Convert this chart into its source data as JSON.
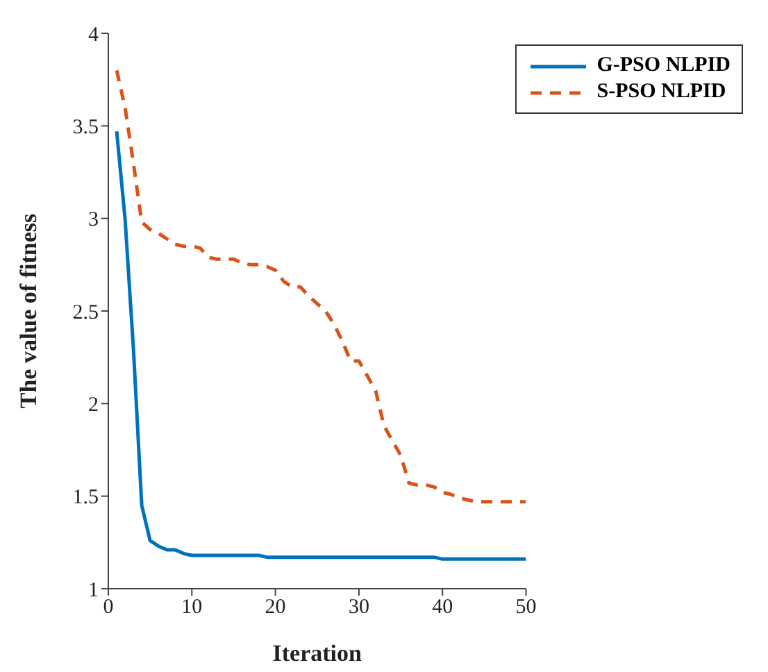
{
  "chart_data": {
    "type": "line",
    "xlabel": "Iteration",
    "ylabel": "The value of fitness",
    "x": [
      1,
      2,
      3,
      4,
      5,
      6,
      7,
      8,
      9,
      10,
      11,
      12,
      13,
      14,
      15,
      16,
      17,
      18,
      19,
      20,
      21,
      22,
      23,
      24,
      25,
      26,
      27,
      28,
      29,
      30,
      31,
      32,
      33,
      34,
      35,
      36,
      37,
      38,
      39,
      40,
      41,
      42,
      43,
      44,
      45,
      46,
      47,
      48,
      49,
      50
    ],
    "series": [
      {
        "name": "G-PSO NLPID",
        "color": "#0072bd",
        "line_style": "solid",
        "values": [
          3.47,
          3.0,
          2.3,
          1.45,
          1.26,
          1.23,
          1.21,
          1.21,
          1.19,
          1.18,
          1.18,
          1.18,
          1.18,
          1.18,
          1.18,
          1.18,
          1.18,
          1.18,
          1.17,
          1.17,
          1.17,
          1.17,
          1.17,
          1.17,
          1.17,
          1.17,
          1.17,
          1.17,
          1.17,
          1.17,
          1.17,
          1.17,
          1.17,
          1.17,
          1.17,
          1.17,
          1.17,
          1.17,
          1.17,
          1.16,
          1.16,
          1.16,
          1.16,
          1.16,
          1.16,
          1.16,
          1.16,
          1.16,
          1.16,
          1.16
        ]
      },
      {
        "name": "S-PSO NLPID",
        "color": "#d95319",
        "line_style": "dashed",
        "values": [
          3.8,
          3.6,
          3.3,
          2.98,
          2.94,
          2.92,
          2.89,
          2.86,
          2.85,
          2.85,
          2.84,
          2.79,
          2.78,
          2.78,
          2.78,
          2.76,
          2.75,
          2.75,
          2.74,
          2.72,
          2.66,
          2.63,
          2.63,
          2.58,
          2.54,
          2.5,
          2.43,
          2.34,
          2.23,
          2.23,
          2.15,
          2.07,
          1.88,
          1.8,
          1.72,
          1.57,
          1.56,
          1.56,
          1.55,
          1.52,
          1.51,
          1.49,
          1.48,
          1.47,
          1.47,
          1.47,
          1.47,
          1.47,
          1.47,
          1.47
        ]
      }
    ],
    "xlim": [
      0,
      50
    ],
    "xticks": [
      0,
      10,
      20,
      30,
      40,
      50
    ],
    "ylim": [
      1,
      4
    ],
    "yticks": [
      1,
      1.5,
      2,
      2.5,
      3,
      3.5,
      4
    ],
    "grid": false,
    "legend": "top right",
    "marker": "none"
  }
}
